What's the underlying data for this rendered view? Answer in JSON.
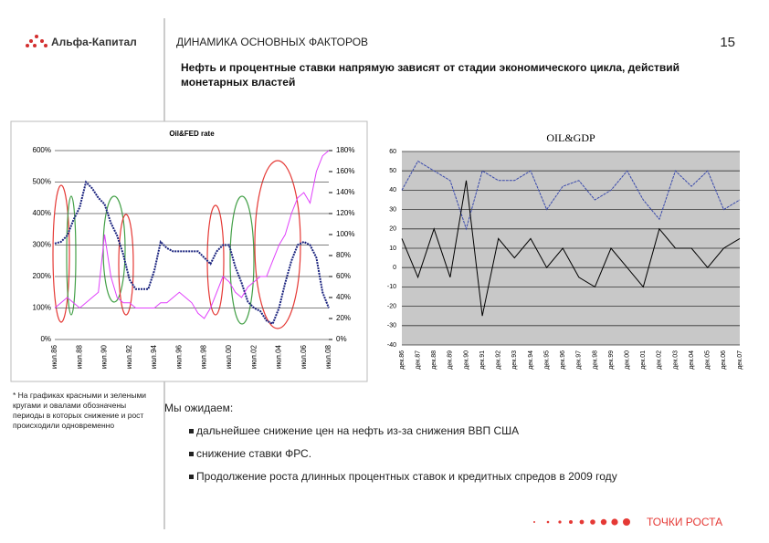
{
  "header": {
    "logo": "Альфа-Капитал",
    "title": "ДИНАМИКА ОСНОВНЫХ ФАКТОРОВ",
    "page": "15",
    "subtitle": "Нефть и процентные ставки напрямую зависят от стадии экономического цикла, действий монетарных властей"
  },
  "chart_data": [
    {
      "type": "line",
      "title": "Oil&FED rate",
      "categories": [
        "июл.86",
        null,
        null,
        null,
        "июл.88",
        null,
        null,
        null,
        "июл.90",
        null,
        null,
        null,
        "июл.92",
        null,
        null,
        null,
        "июл.94",
        null,
        null,
        null,
        "июл.96",
        null,
        null,
        null,
        "июл.98",
        null,
        null,
        null,
        "июл.00",
        null,
        null,
        null,
        "июл.02",
        null,
        null,
        null,
        "июл.04",
        null,
        null,
        null,
        "июл.06",
        null,
        null,
        null,
        "июл.08"
      ],
      "series": [
        {
          "color": "#1a237e",
          "values": [
            305,
            310,
            330,
            380,
            420,
            500,
            480,
            450,
            430,
            370,
            330,
            270,
            190,
            160,
            160,
            160,
            220,
            310,
            290,
            280,
            280,
            280,
            280,
            280,
            260,
            240,
            280,
            300,
            300,
            230,
            180,
            120,
            100,
            90,
            60,
            50,
            100,
            180,
            250,
            300,
            310,
            300,
            260,
            150,
            100
          ]
        },
        {
          "color": "#e040fb",
          "axis": "y2",
          "values": [
            30,
            35,
            40,
            35,
            30,
            35,
            40,
            45,
            100,
            60,
            40,
            35,
            35,
            30,
            30,
            30,
            30,
            35,
            35,
            40,
            45,
            40,
            35,
            25,
            20,
            30,
            45,
            60,
            55,
            45,
            40,
            50,
            55,
            60,
            60,
            75,
            90,
            100,
            120,
            135,
            140,
            130,
            160,
            175,
            180
          ]
        }
      ],
      "ylim": [
        0,
        600
      ],
      "yticks": [
        {
          "value": 0,
          "label": "0%"
        },
        {
          "value": 100,
          "label": "100%"
        },
        {
          "value": 200,
          "label": "200%"
        },
        {
          "value": 300,
          "label": "300%"
        },
        {
          "value": 400,
          "label": "400%"
        },
        {
          "value": 500,
          "label": "500%"
        },
        {
          "value": 600,
          "label": "600%"
        }
      ],
      "y2lim": [
        0,
        180
      ],
      "y2ticks": [
        {
          "value": 0,
          "label": "0%"
        },
        {
          "value": 20,
          "label": "20%"
        },
        {
          "value": 40,
          "label": "40%"
        },
        {
          "value": 60,
          "label": "60%"
        },
        {
          "value": 80,
          "label": "80%"
        },
        {
          "value": 100,
          "label": "100%"
        },
        {
          "value": 120,
          "label": "120%"
        },
        {
          "value": 140,
          "label": "140%"
        },
        {
          "value": 160,
          "label": "160%"
        },
        {
          "value": 180,
          "label": "180%"
        }
      ],
      "grid": true
    },
    {
      "type": "line",
      "title": "OIL&GDP",
      "categories": [
        "дек.86",
        "дек.87",
        "дек.88",
        "дек.89",
        "дек.90",
        "дек.91",
        "дек.92",
        "дек.93",
        "дек.94",
        "дек.95",
        "дек.96",
        "дек.97",
        "дек.98",
        "дек.99",
        "дек.00",
        "дек.01",
        "дек.02",
        "дек.03",
        "дек.04",
        "дек.05",
        "дек.06",
        "дек.07"
      ],
      "series": [
        {
          "color": "#3949ab",
          "values": [
            40,
            55,
            50,
            45,
            20,
            50,
            45,
            45,
            50,
            30,
            42,
            45,
            35,
            40,
            50,
            35,
            25,
            50,
            42,
            50,
            30,
            35
          ]
        },
        {
          "color": "#000000",
          "values": [
            15,
            -5,
            20,
            -5,
            45,
            -25,
            15,
            5,
            15,
            0,
            10,
            -5,
            -10,
            10,
            0,
            -10,
            20,
            10,
            10,
            0,
            10,
            15
          ]
        }
      ],
      "ylim": [
        -40,
        60
      ],
      "yticks": [
        -40,
        -30,
        -20,
        -10,
        0,
        10,
        20,
        30,
        40,
        50,
        60
      ],
      "grid": true
    }
  ],
  "footnote": "* На графиках красными и зелеными кругами и овалами обозначены периоды в которых снижение и рост происходили одновременно",
  "expect": {
    "title": "Мы ожидаем:",
    "items": [
      "дальнейшее снижение цен на нефть из-за снижения ВВП США",
      "снижение ставки ФРС.",
      "Продолжение роста длинных процентных ставок и кредитных спредов в 2009 году"
    ]
  },
  "footer": "ТОЧКИ РОСТА"
}
